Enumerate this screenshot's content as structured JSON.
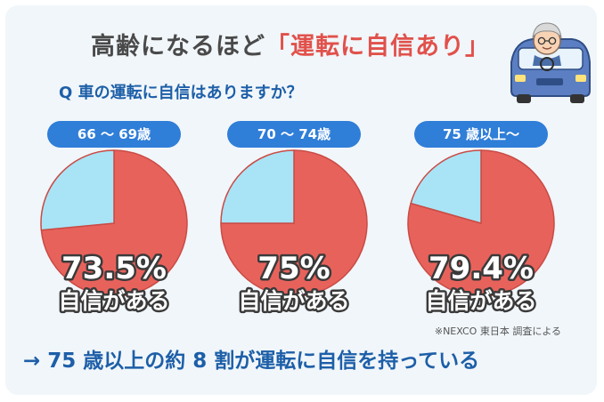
{
  "headline": {
    "prefix": "高齢になるほど",
    "highlight": "「運転に自信あり」"
  },
  "question": "Q  車の運転に自信はありますか？",
  "source": "※NEXCO 東日本 調査による",
  "conclusion": "→ 75 歳以上の約 8 割が運転に自信を持っている",
  "colors": {
    "confident": "#e8625c",
    "other": "#a8e4f6",
    "badge": "#2f7ed8",
    "accent": "#e1514b",
    "primary": "#1d5fa8"
  },
  "chart_data": [
    {
      "type": "pie",
      "title": "66 〜 69歳",
      "slices": [
        {
          "label": "自信がある",
          "value": 73.5
        },
        {
          "label": "",
          "value": 26.5
        }
      ],
      "value_label": "73.5%",
      "caption": "自信がある"
    },
    {
      "type": "pie",
      "title": "70 〜 74歳",
      "slices": [
        {
          "label": "自信がある",
          "value": 75
        },
        {
          "label": "",
          "value": 25
        }
      ],
      "value_label": "75%",
      "caption": "自信がある"
    },
    {
      "type": "pie",
      "title": "75 歳以上〜",
      "slices": [
        {
          "label": "自信がある",
          "value": 79.4
        },
        {
          "label": "",
          "value": 20.6
        }
      ],
      "value_label": "79.4%",
      "caption": "自信がある"
    }
  ]
}
